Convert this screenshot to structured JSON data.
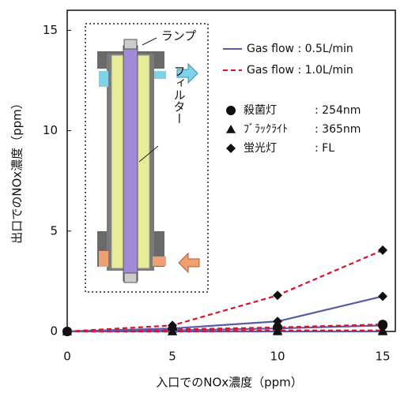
{
  "chart_data": {
    "type": "line",
    "xlabel": "入口でのNOx濃度（ppm）",
    "ylabel": "出口でのNOx濃度（ppm）",
    "x": [
      0,
      5,
      10,
      15
    ],
    "xlim": [
      0,
      15.6
    ],
    "xticks": [
      0,
      5,
      10,
      15
    ],
    "ylim": [
      0,
      16
    ],
    "yticks": [
      0,
      5,
      10,
      15
    ],
    "flows": [
      {
        "label": "Gas flow : 0.5L/min",
        "color": "#5a5aa8",
        "dash": false
      },
      {
        "label": "Gas flow : 1.0L/min",
        "color": "#e0102a",
        "dash": true
      }
    ],
    "lamps": [
      {
        "marker": "circle",
        "label": "殺菌灯",
        "spec": ": 254nm"
      },
      {
        "marker": "triangle",
        "label": "ﾌﾞﾗｯｸﾗｲﾄ",
        "spec": ": 365nm"
      },
      {
        "marker": "diamond",
        "label": "蛍光灯",
        "spec": ":  FL"
      }
    ],
    "series": [
      {
        "flow": 0,
        "lamp": 0,
        "values": [
          0,
          0.05,
          0.15,
          0.3
        ]
      },
      {
        "flow": 1,
        "lamp": 0,
        "values": [
          0,
          0.1,
          0.2,
          0.35
        ]
      },
      {
        "flow": 0,
        "lamp": 1,
        "values": [
          0,
          0,
          0,
          0
        ]
      },
      {
        "flow": 1,
        "lamp": 1,
        "values": [
          0,
          0,
          0.05,
          0.05
        ]
      },
      {
        "flow": 0,
        "lamp": 2,
        "values": [
          0,
          0.15,
          0.5,
          1.75
        ]
      },
      {
        "flow": 1,
        "lamp": 2,
        "values": [
          0,
          0.3,
          1.8,
          4.05
        ]
      }
    ],
    "inset": {
      "lamp_label": "ランプ",
      "filter_label": "フィルター"
    }
  }
}
